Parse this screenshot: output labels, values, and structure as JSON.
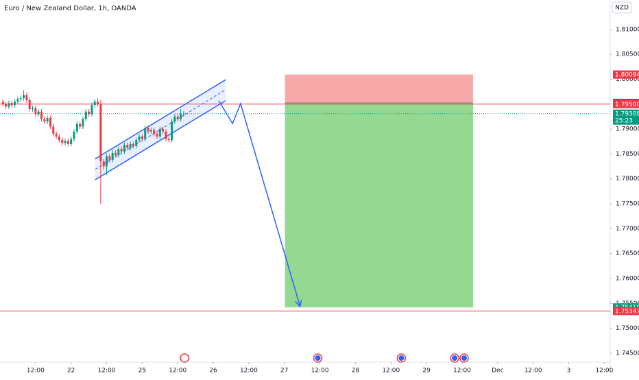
{
  "chart_data": {
    "type": "candlestick",
    "title": "Euro / New Zealand Dollar, 1h, OANDA",
    "currency": "NZD",
    "up_color": "#089981",
    "down_color": "#f23645",
    "xlim": [
      0,
      206
    ],
    "ylim": [
      1.7432,
      1.8159
    ],
    "xticks": [
      {
        "value": 12,
        "label": "12:00"
      },
      {
        "value": 24,
        "label": "22"
      },
      {
        "value": 36,
        "label": "12:00"
      },
      {
        "value": 48,
        "label": "25"
      },
      {
        "value": 60,
        "label": "12:00"
      },
      {
        "value": 72,
        "label": "26"
      },
      {
        "value": 84,
        "label": "12:00"
      },
      {
        "value": 96,
        "label": "27"
      },
      {
        "value": 108,
        "label": "12:00"
      },
      {
        "value": 120,
        "label": "28"
      },
      {
        "value": 132,
        "label": "12:00"
      },
      {
        "value": 144,
        "label": "29"
      },
      {
        "value": 156,
        "label": "12:00"
      },
      {
        "value": 168,
        "label": "Dec"
      },
      {
        "value": 180,
        "label": "12:00"
      },
      {
        "value": 192,
        "label": "3"
      },
      {
        "value": 204,
        "label": "12:00"
      }
    ],
    "yticks": [
      {
        "value": 1.81,
        "label": "1.81000"
      },
      {
        "value": 1.805,
        "label": "1.80500"
      },
      {
        "value": 1.8,
        "label": "1.80000"
      },
      {
        "value": 1.79,
        "label": "1.79000"
      },
      {
        "value": 1.785,
        "label": "1.78500"
      },
      {
        "value": 1.78,
        "label": "1.78000"
      },
      {
        "value": 1.775,
        "label": "1.77500"
      },
      {
        "value": 1.77,
        "label": "1.77000"
      },
      {
        "value": 1.765,
        "label": "1.76500"
      },
      {
        "value": 1.76,
        "label": "1.76000"
      },
      {
        "value": 1.755,
        "label": "1.75500"
      },
      {
        "value": 1.75,
        "label": "1.75000"
      },
      {
        "value": 1.745,
        "label": "1.74500"
      }
    ],
    "x": [
      1,
      2,
      3,
      4,
      5,
      6,
      7,
      8,
      9,
      10,
      11,
      12,
      13,
      14,
      15,
      16,
      17,
      18,
      19,
      20,
      21,
      22,
      23,
      24,
      25,
      26,
      27,
      28,
      29,
      30,
      31,
      32,
      33,
      34,
      35,
      36,
      37,
      38,
      39,
      40,
      41,
      42,
      43,
      44,
      45,
      46,
      47,
      48,
      49,
      50,
      51,
      52,
      53,
      54,
      55,
      56,
      57,
      58,
      59,
      60,
      61,
      62
    ],
    "open": [
      1.7955,
      1.795,
      1.7945,
      1.7952,
      1.7948,
      1.7955,
      1.796,
      1.7962,
      1.7968,
      1.7958,
      1.794,
      1.7942,
      1.793,
      1.7935,
      1.792,
      1.7915,
      1.7922,
      1.7905,
      1.789,
      1.7885,
      1.7878,
      1.7872,
      1.7876,
      1.787,
      1.788,
      1.7895,
      1.791,
      1.7905,
      1.792,
      1.7935,
      1.793,
      1.7948,
      1.7955,
      1.795,
      1.7835,
      1.7825,
      1.7845,
      1.7838,
      1.7852,
      1.7848,
      1.786,
      1.7855,
      1.7868,
      1.7862,
      1.787,
      1.7866,
      1.7878,
      1.7885,
      1.788,
      1.7902,
      1.7895,
      1.7898,
      1.789,
      1.7885,
      1.79,
      1.7895,
      1.788,
      1.7878,
      1.7915,
      1.7925,
      1.792,
      1.793
    ],
    "high": [
      1.796,
      1.7955,
      1.7957,
      1.7957,
      1.796,
      1.7965,
      1.7967,
      1.7978,
      1.7973,
      1.7963,
      1.7947,
      1.7947,
      1.794,
      1.794,
      1.7925,
      1.7927,
      1.7927,
      1.791,
      1.7895,
      1.789,
      1.7883,
      1.7881,
      1.7881,
      1.7885,
      1.79,
      1.7915,
      1.7915,
      1.7925,
      1.794,
      1.794,
      1.7953,
      1.796,
      1.7962,
      1.7958,
      1.784,
      1.785,
      1.785,
      1.7857,
      1.7857,
      1.7865,
      1.7865,
      1.7873,
      1.7873,
      1.7875,
      1.7875,
      1.7883,
      1.789,
      1.789,
      1.7907,
      1.7907,
      1.7903,
      1.7903,
      1.7895,
      1.7905,
      1.7905,
      1.79,
      1.7885,
      1.792,
      1.793,
      1.793,
      1.794,
      1.7936
    ],
    "low": [
      1.7945,
      1.794,
      1.794,
      1.7943,
      1.7943,
      1.795,
      1.7955,
      1.7957,
      1.7953,
      1.7935,
      1.7935,
      1.7925,
      1.7925,
      1.7915,
      1.791,
      1.791,
      1.79,
      1.7885,
      1.788,
      1.7873,
      1.7867,
      1.7867,
      1.7865,
      1.7865,
      1.7875,
      1.789,
      1.79,
      1.79,
      1.7915,
      1.7925,
      1.7925,
      1.7943,
      1.7945,
      1.7749,
      1.7818,
      1.7808,
      1.7833,
      1.7833,
      1.7843,
      1.7843,
      1.785,
      1.785,
      1.7857,
      1.7857,
      1.7861,
      1.7861,
      1.7873,
      1.7875,
      1.7875,
      1.789,
      1.789,
      1.7885,
      1.788,
      1.788,
      1.789,
      1.7875,
      1.7873,
      1.7873,
      1.791,
      1.7915,
      1.7915,
      1.7925
    ],
    "close": [
      1.795,
      1.7945,
      1.7952,
      1.7948,
      1.7955,
      1.796,
      1.7962,
      1.7968,
      1.7958,
      1.794,
      1.7942,
      1.793,
      1.7935,
      1.792,
      1.7915,
      1.7922,
      1.7905,
      1.789,
      1.7885,
      1.7878,
      1.7872,
      1.7876,
      1.787,
      1.788,
      1.7895,
      1.791,
      1.7905,
      1.792,
      1.7935,
      1.793,
      1.7948,
      1.7955,
      1.795,
      1.7835,
      1.7825,
      1.7845,
      1.7838,
      1.7852,
      1.7848,
      1.786,
      1.7855,
      1.7868,
      1.7862,
      1.787,
      1.7866,
      1.7878,
      1.7885,
      1.788,
      1.7902,
      1.7895,
      1.7898,
      1.789,
      1.7885,
      1.79,
      1.7895,
      1.788,
      1.7878,
      1.7915,
      1.7925,
      1.792,
      1.793,
      1.7931
    ],
    "horizontal_lines": [
      {
        "value": 1.795,
        "color": "#f23645"
      },
      {
        "value": 1.75347,
        "color": "#f23645"
      }
    ],
    "current_price": {
      "value": 1.79308,
      "label": "1.79308",
      "countdown": "25:23",
      "color": "#089981"
    },
    "price_labels": [
      {
        "value": 1.80094,
        "label": "1.80094",
        "color": "#f23645"
      },
      {
        "value": 1.79525,
        "label": "1.79525",
        "color": "#5d606b"
      },
      {
        "value": 1.795,
        "label": "1.79500",
        "color": "#f23645"
      },
      {
        "value": 1.75419,
        "label": "1.75419",
        "color": "#089981"
      },
      {
        "value": 1.75347,
        "label": "1.75347",
        "color": "#f23645"
      }
    ],
    "position": {
      "x": [
        96.2,
        159.7
      ],
      "stop": 1.80094,
      "entry": 1.79525,
      "target": 1.75419,
      "stop_color": "#f7a9a9",
      "target_color": "#94d891"
    },
    "channel": {
      "color": "#2962ff",
      "x": [
        32.1,
        76.2
      ],
      "upper": [
        1.784,
        1.7999
      ],
      "middle": [
        1.7819,
        1.7979
      ],
      "lower": [
        1.7798,
        1.7957
      ]
    },
    "path_arrow": {
      "color": "#2962ff",
      "x": [
        73.85,
        78.5,
        81.2,
        101.3
      ],
      "values": [
        1.7957,
        1.7911,
        1.7951,
        1.7544
      ]
    },
    "events": [
      62.3,
      107.3,
      135.5,
      153.5,
      156.7
    ]
  }
}
